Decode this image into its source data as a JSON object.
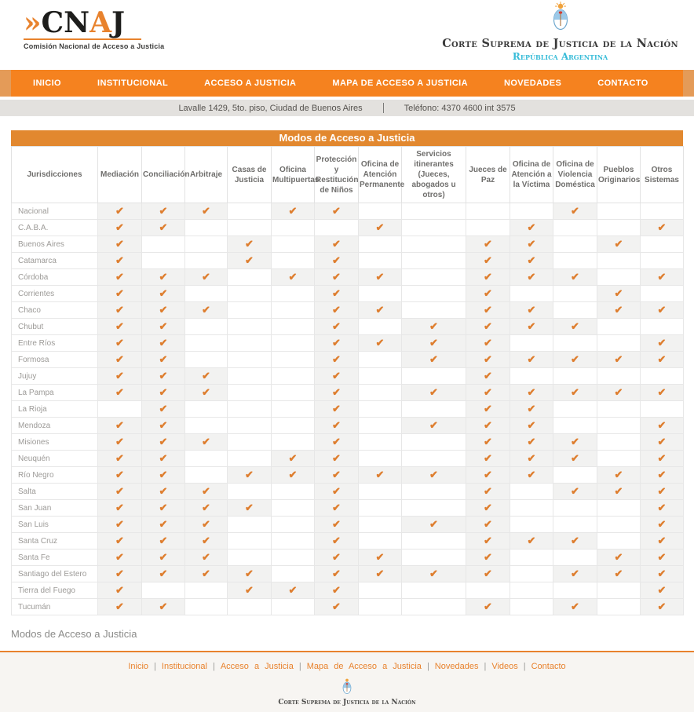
{
  "brand": {
    "logo_prefix": "»",
    "logo_part1": "CN",
    "logo_part2": "A",
    "logo_part3": "J",
    "tagline": "Comisión Nacional de Acceso a Justicia"
  },
  "court": {
    "name": "Corte Suprema de Justicia de la Nación",
    "country": "República Argentina"
  },
  "nav": {
    "items": [
      "INICIO",
      "INSTITUCIONAL",
      "ACCESO A JUSTICIA",
      "MAPA DE ACCESO A JUSTICIA",
      "NOVEDADES",
      "CONTACTO"
    ]
  },
  "info_bar": {
    "address": "Lavalle 1429, 5to. piso, Ciudad de Buenos Aires",
    "phone": "Teléfono: 4370 4600 int 3575"
  },
  "table": {
    "title": "Modos de Acceso a Justicia",
    "row_header": "Jurisdicciones",
    "columns": [
      "Mediación",
      "Conciliación",
      "Arbitraje",
      "Casas de Justicia",
      "Oficina Multipuertas",
      "Protección y Restitución de Niños",
      "Oficina de Atención Permanente",
      "Servicios itinerantes (Jueces, abogados u otros)",
      "Jueces de Paz",
      "Oficina de Atención a la Víctima",
      "Oficina de Violencia Doméstica",
      "Pueblos Originarios",
      "Otros Sistemas"
    ],
    "check_symbol": "✔",
    "rows": [
      {
        "name": "Nacional",
        "checks": [
          1,
          1,
          1,
          0,
          1,
          1,
          0,
          0,
          0,
          0,
          1,
          0,
          0
        ]
      },
      {
        "name": "C.A.B.A.",
        "checks": [
          1,
          1,
          0,
          0,
          0,
          0,
          1,
          0,
          0,
          1,
          0,
          0,
          1
        ]
      },
      {
        "name": "Buenos Aires",
        "checks": [
          1,
          0,
          0,
          1,
          0,
          1,
          0,
          0,
          1,
          1,
          0,
          1,
          0
        ]
      },
      {
        "name": "Catamarca",
        "checks": [
          1,
          0,
          0,
          1,
          0,
          1,
          0,
          0,
          1,
          1,
          0,
          0,
          0
        ]
      },
      {
        "name": "Córdoba",
        "checks": [
          1,
          1,
          1,
          0,
          1,
          1,
          1,
          0,
          1,
          1,
          1,
          0,
          1
        ]
      },
      {
        "name": "Corrientes",
        "checks": [
          1,
          1,
          0,
          0,
          0,
          1,
          0,
          0,
          1,
          0,
          0,
          1,
          0
        ]
      },
      {
        "name": "Chaco",
        "checks": [
          1,
          1,
          1,
          0,
          0,
          1,
          1,
          0,
          1,
          1,
          0,
          1,
          1
        ]
      },
      {
        "name": "Chubut",
        "checks": [
          1,
          1,
          0,
          0,
          0,
          1,
          0,
          1,
          1,
          1,
          1,
          0,
          0
        ]
      },
      {
        "name": "Entre Ríos",
        "checks": [
          1,
          1,
          0,
          0,
          0,
          1,
          1,
          1,
          1,
          0,
          0,
          0,
          1
        ]
      },
      {
        "name": "Formosa",
        "checks": [
          1,
          1,
          0,
          0,
          0,
          1,
          0,
          1,
          1,
          1,
          1,
          1,
          1
        ]
      },
      {
        "name": "Jujuy",
        "checks": [
          1,
          1,
          1,
          0,
          0,
          1,
          0,
          0,
          1,
          0,
          0,
          0,
          0
        ]
      },
      {
        "name": "La Pampa",
        "checks": [
          1,
          1,
          1,
          0,
          0,
          1,
          0,
          1,
          1,
          1,
          1,
          1,
          1
        ]
      },
      {
        "name": "La Rioja",
        "checks": [
          0,
          1,
          0,
          0,
          0,
          1,
          0,
          0,
          1,
          1,
          0,
          0,
          0
        ]
      },
      {
        "name": "Mendoza",
        "checks": [
          1,
          1,
          0,
          0,
          0,
          1,
          0,
          1,
          1,
          1,
          0,
          0,
          1
        ]
      },
      {
        "name": "Misiones",
        "checks": [
          1,
          1,
          1,
          0,
          0,
          1,
          0,
          0,
          1,
          1,
          1,
          0,
          1
        ]
      },
      {
        "name": "Neuquén",
        "checks": [
          1,
          1,
          0,
          0,
          1,
          1,
          0,
          0,
          1,
          1,
          1,
          0,
          1
        ]
      },
      {
        "name": "Río Negro",
        "checks": [
          1,
          1,
          0,
          1,
          1,
          1,
          1,
          1,
          1,
          1,
          0,
          1,
          1
        ]
      },
      {
        "name": "Salta",
        "checks": [
          1,
          1,
          1,
          0,
          0,
          1,
          0,
          0,
          1,
          0,
          1,
          1,
          1
        ]
      },
      {
        "name": "San Juan",
        "checks": [
          1,
          1,
          1,
          1,
          0,
          1,
          0,
          0,
          1,
          0,
          0,
          0,
          1
        ]
      },
      {
        "name": "San Luis",
        "checks": [
          1,
          1,
          1,
          0,
          0,
          1,
          0,
          1,
          1,
          0,
          0,
          0,
          1
        ]
      },
      {
        "name": "Santa Cruz",
        "checks": [
          1,
          1,
          1,
          0,
          0,
          1,
          0,
          0,
          1,
          1,
          1,
          0,
          1
        ]
      },
      {
        "name": "Santa Fe",
        "checks": [
          1,
          1,
          1,
          0,
          0,
          1,
          1,
          0,
          1,
          0,
          0,
          1,
          1
        ]
      },
      {
        "name": "Santiago del Estero",
        "checks": [
          1,
          1,
          1,
          1,
          0,
          1,
          1,
          1,
          1,
          0,
          1,
          1,
          1
        ]
      },
      {
        "name": "Tierra del Fuego",
        "checks": [
          1,
          0,
          0,
          1,
          1,
          1,
          0,
          0,
          0,
          0,
          0,
          0,
          1
        ]
      },
      {
        "name": "Tucumán",
        "checks": [
          1,
          1,
          0,
          0,
          0,
          1,
          0,
          0,
          1,
          0,
          1,
          0,
          1
        ]
      }
    ]
  },
  "below_table_caption": "Modos de Acceso a Justicia",
  "footer": {
    "links": [
      "Inicio",
      "Institucional",
      "Acceso a Justicia",
      "Mapa de Acceso a Justicia",
      "Novedades",
      "Videos",
      "Contacto"
    ],
    "separator": "|",
    "org": "Corte Suprema de Justicia de la Nación"
  },
  "colors": {
    "accent": "#E8822D",
    "nav_bar": "#F5821F",
    "nav_edge": "#E49B58",
    "table_title_bar": "#E2882F",
    "check": "#DE7E2F",
    "checked_cell_bg": "#F2F2F1",
    "info_bar_bg": "#E3E1DE",
    "footer_bg": "#F7F5F2",
    "republica_text": "#38BCD8"
  }
}
